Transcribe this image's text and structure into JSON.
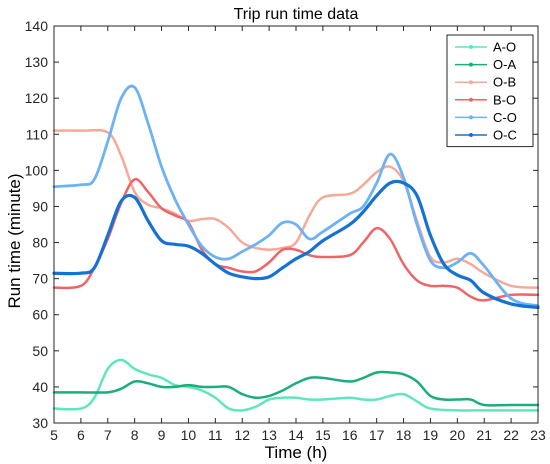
{
  "chart_data": {
    "type": "line",
    "title": "Trip run time data",
    "xlabel": "Time (h)",
    "ylabel": "Run time (minute)",
    "xlim": [
      5,
      23
    ],
    "ylim": [
      30,
      140
    ],
    "xticks": [
      5,
      6,
      7,
      8,
      9,
      10,
      11,
      12,
      13,
      14,
      15,
      16,
      17,
      18,
      19,
      20,
      21,
      22,
      23
    ],
    "yticks": [
      30,
      40,
      50,
      60,
      70,
      80,
      90,
      100,
      110,
      120,
      130,
      140
    ],
    "grid": false,
    "legend_position": "top-right",
    "series": [
      {
        "name": "A-O",
        "color": "#5fe6c0",
        "width": 2.5,
        "x": [
          5,
          6,
          6.5,
          7,
          7.5,
          8,
          8.5,
          9,
          9.5,
          10,
          10.5,
          11,
          11.5,
          12,
          12.5,
          13,
          13.5,
          14,
          14.5,
          15,
          16,
          16.5,
          17,
          17.5,
          18,
          18.5,
          19,
          20,
          21,
          22,
          23
        ],
        "y": [
          34,
          34,
          37,
          45,
          47.5,
          45,
          43.5,
          42.5,
          40.5,
          40,
          39,
          37,
          34,
          33.5,
          34.5,
          36.5,
          37,
          37,
          36.5,
          36.5,
          37,
          36.5,
          36.5,
          37.5,
          38,
          36,
          34,
          33.5,
          33.5,
          33.5,
          33.5
        ]
      },
      {
        "name": "O-A",
        "color": "#1aae7c",
        "width": 2.5,
        "x": [
          5,
          6,
          7,
          7.5,
          8,
          8.5,
          9,
          9.5,
          10,
          10.5,
          11,
          11.5,
          12,
          12.5,
          13,
          13.5,
          14,
          14.5,
          15,
          16,
          16.5,
          17,
          17.5,
          18,
          18.5,
          19,
          19.5,
          20,
          20.5,
          21,
          22,
          23
        ],
        "y": [
          38.5,
          38.5,
          38.5,
          39.5,
          41.5,
          41,
          40,
          40,
          40.5,
          40,
          40,
          40,
          38,
          37,
          37.5,
          39,
          41,
          42.5,
          42.5,
          41.5,
          42.5,
          44,
          44,
          43.5,
          41.5,
          37.5,
          36.5,
          36.5,
          36.5,
          35,
          35,
          35
        ]
      },
      {
        "name": "O-B",
        "color": "#f5aa98",
        "width": 2.5,
        "x": [
          5,
          6,
          7,
          7.5,
          8,
          8.5,
          9,
          9.5,
          10,
          10.5,
          11,
          11.5,
          12,
          12.5,
          13,
          13.5,
          14,
          14.5,
          15,
          16,
          16.5,
          17,
          17.5,
          18,
          18.5,
          19,
          19.5,
          20,
          20.5,
          21,
          22,
          23
        ],
        "y": [
          111,
          111,
          110.5,
          104,
          94,
          90.5,
          89.5,
          88,
          86,
          86.5,
          86.5,
          84,
          80,
          78.5,
          78,
          78.5,
          80,
          87.5,
          92.5,
          93.5,
          96,
          99.5,
          101,
          97,
          86,
          76,
          74.5,
          75.5,
          74,
          71.5,
          68,
          67.5
        ]
      },
      {
        "name": "B-O",
        "color": "#ef6466",
        "width": 2.5,
        "x": [
          5,
          6,
          6.5,
          7,
          7.5,
          8,
          8.5,
          9,
          9.5,
          10,
          10.5,
          11,
          11.5,
          12,
          12.5,
          13,
          13.5,
          14,
          14.5,
          15,
          16,
          16.5,
          17,
          17.5,
          18,
          18.5,
          19,
          19.5,
          20,
          20.5,
          21,
          22,
          23
        ],
        "y": [
          67.5,
          68,
          73,
          81,
          91,
          97.5,
          94,
          89.5,
          87.5,
          85.5,
          78,
          74,
          73,
          72,
          72,
          74.5,
          78,
          78,
          76.5,
          76,
          76.5,
          80,
          84,
          81,
          74,
          69.5,
          68,
          68,
          67.5,
          65,
          64,
          65.5,
          65.5
        ]
      },
      {
        "name": "C-O",
        "color": "#6cb2f5",
        "width": 2.8,
        "x": [
          5,
          6,
          6.5,
          7,
          7.5,
          8,
          8.5,
          9,
          9.5,
          10,
          10.5,
          11,
          11.5,
          12,
          12.5,
          13,
          13.5,
          14,
          14.5,
          15,
          16,
          16.5,
          17,
          17.5,
          18,
          18.5,
          19,
          19.5,
          20,
          20.5,
          21,
          22,
          23
        ],
        "y": [
          95.5,
          96,
          97.5,
          108,
          120,
          123,
          113,
          101,
          92,
          85,
          79,
          76,
          75.5,
          77.5,
          79.5,
          82,
          85.5,
          85,
          81,
          83,
          88,
          90,
          96.5,
          104.5,
          98,
          85,
          75,
          73,
          74.5,
          77,
          73.5,
          64.5,
          62.5
        ]
      },
      {
        "name": "O-C",
        "color": "#1472d4",
        "width": 3.2,
        "x": [
          5,
          6,
          6.5,
          7,
          7.5,
          8,
          8.5,
          9,
          9.5,
          10,
          10.5,
          11,
          11.5,
          12,
          12.5,
          13,
          13.5,
          14,
          14.5,
          15,
          16,
          16.5,
          17,
          17.5,
          18,
          18.5,
          19,
          19.5,
          20,
          20.5,
          21,
          22,
          23
        ],
        "y": [
          71.5,
          71.5,
          73,
          82,
          91.5,
          92.5,
          86,
          80.5,
          79.5,
          79,
          77,
          74,
          71.5,
          70.5,
          70,
          70.5,
          73,
          75.5,
          77.5,
          80.5,
          85,
          88.5,
          93,
          96.5,
          96.5,
          93,
          82,
          74,
          71,
          69.5,
          66,
          63,
          62
        ]
      }
    ]
  }
}
